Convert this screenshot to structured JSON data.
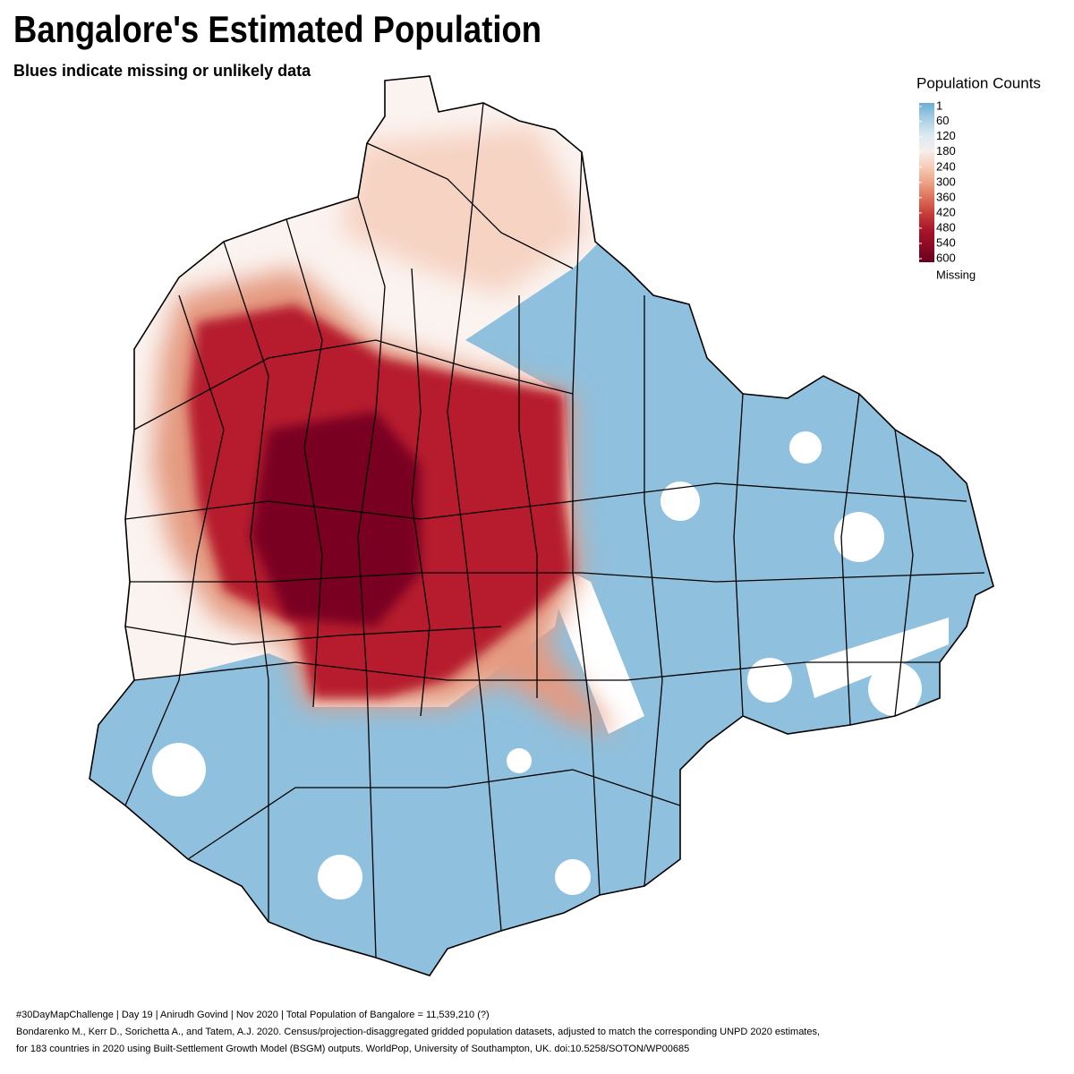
{
  "header": {
    "title": "Bangalore's Estimated Population",
    "subtitle": "Blues indicate missing or unlikely data"
  },
  "legend": {
    "title": "Population Counts",
    "ticks": [
      1,
      60,
      120,
      180,
      240,
      300,
      360,
      420,
      480,
      540,
      600
    ],
    "colors": [
      "#6aaed6",
      "#a9cfe4",
      "#dbe9f1",
      "#f4efed",
      "#f6cdb7",
      "#eca287",
      "#dc6e58",
      "#c43c38",
      "#a8142b",
      "#8b0a22",
      "#67001f"
    ],
    "missing_label": "Missing"
  },
  "caption": {
    "line1": "#30DayMapChallenge | Day 19 | Anirudh Govind | Nov 2020 | Total Population of Bangalore = 11,539,210 (?)",
    "line2": "Bondarenko M., Kerr D., Sorichetta A., and Tatem, A.J. 2020. Census/projection-disaggregated gridded population datasets, adjusted to match the corresponding UNPD 2020 estimates,",
    "line3": "for 183 countries in 2020 using Built-Settlement Growth Model (BSGM) outputs. WorldPop, University of Southampton, UK. doi:10.5258/SOTON/WP00685"
  }
}
